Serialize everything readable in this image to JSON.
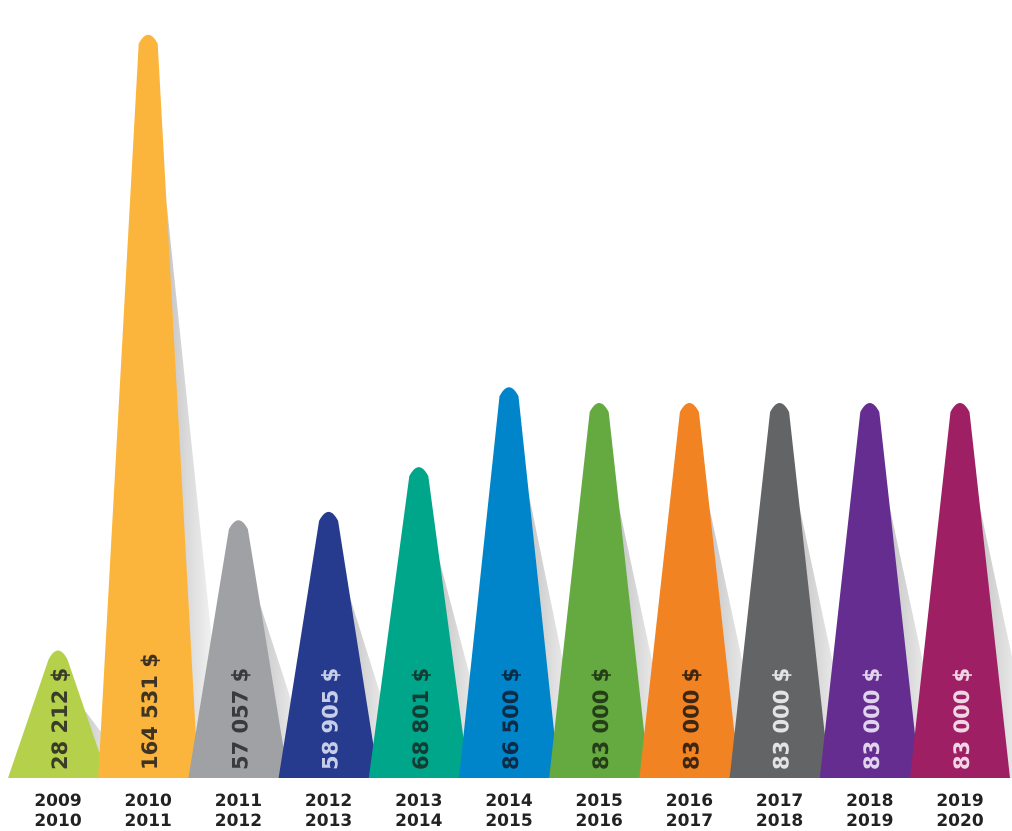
{
  "chart_data": {
    "type": "bar",
    "title": "",
    "xlabel": "",
    "ylabel": "",
    "unit": "$",
    "ylim": [
      0,
      170000
    ],
    "grid": false,
    "legend": "none",
    "categories": [
      [
        "2009",
        "2010"
      ],
      [
        "2010",
        "2011"
      ],
      [
        "2011",
        "2012"
      ],
      [
        "2012",
        "2013"
      ],
      [
        "2013",
        "2014"
      ],
      [
        "2014",
        "2015"
      ],
      [
        "2015",
        "2016"
      ],
      [
        "2016",
        "2017"
      ],
      [
        "2017",
        "2018"
      ],
      [
        "2018",
        "2019"
      ],
      [
        "2019",
        "2020"
      ]
    ],
    "values": [
      28212,
      164531,
      57057,
      58905,
      68801,
      86500,
      83000,
      83000,
      83000,
      83000,
      83000
    ],
    "value_labels": [
      "28 212 $",
      "164 531 $",
      "57 057 $",
      "58 905 $",
      "68 801 $",
      "86 500 $",
      "83 000 $",
      "83 000 $",
      "83 000 $",
      "83 000 $",
      "83 000 $"
    ],
    "colors": [
      "#b5d14b",
      "#fbb53d",
      "#a0a1a4",
      "#263a8e",
      "#00a68a",
      "#0085ca",
      "#65aa40",
      "#f28322",
      "#636466",
      "#662d91",
      "#9e1f63"
    ],
    "label_colors": [
      "#3b3b2a",
      "#3f3424",
      "#3a3a3c",
      "#c7cfe8",
      "#123c34",
      "#0c2b47",
      "#253d18",
      "#3d2612",
      "#e3e3e3",
      "#e0d4ec",
      "#f0d6e4"
    ]
  }
}
